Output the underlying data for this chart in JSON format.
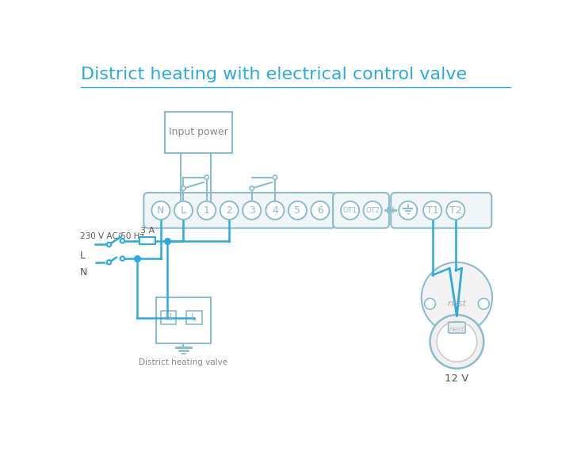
{
  "title": "District heating with electrical control valve",
  "title_color": "#29abe2",
  "title_fontsize": 16,
  "bg_color": "#ffffff",
  "wire_color": "#29abe2",
  "comp_color": "#8bbccc",
  "text_gray": "#888888",
  "text_dark": "#555555",
  "input_power_label": "Input power",
  "district_label": "District heating valve",
  "twelve_v_label": "12 V",
  "ac_label": "230 V AC/50 Hz",
  "l_label": "L",
  "n_label": "N",
  "fuse_label": "3 A",
  "term_labels": [
    "N",
    "L",
    "1",
    "2",
    "3",
    "4",
    "5",
    "6"
  ],
  "ot_labels": [
    "OT1",
    "OT2"
  ],
  "rt_labels": [
    "⊥",
    "T1",
    "T2"
  ],
  "fig_w": 7.28,
  "fig_h": 5.94,
  "dpi": 100
}
